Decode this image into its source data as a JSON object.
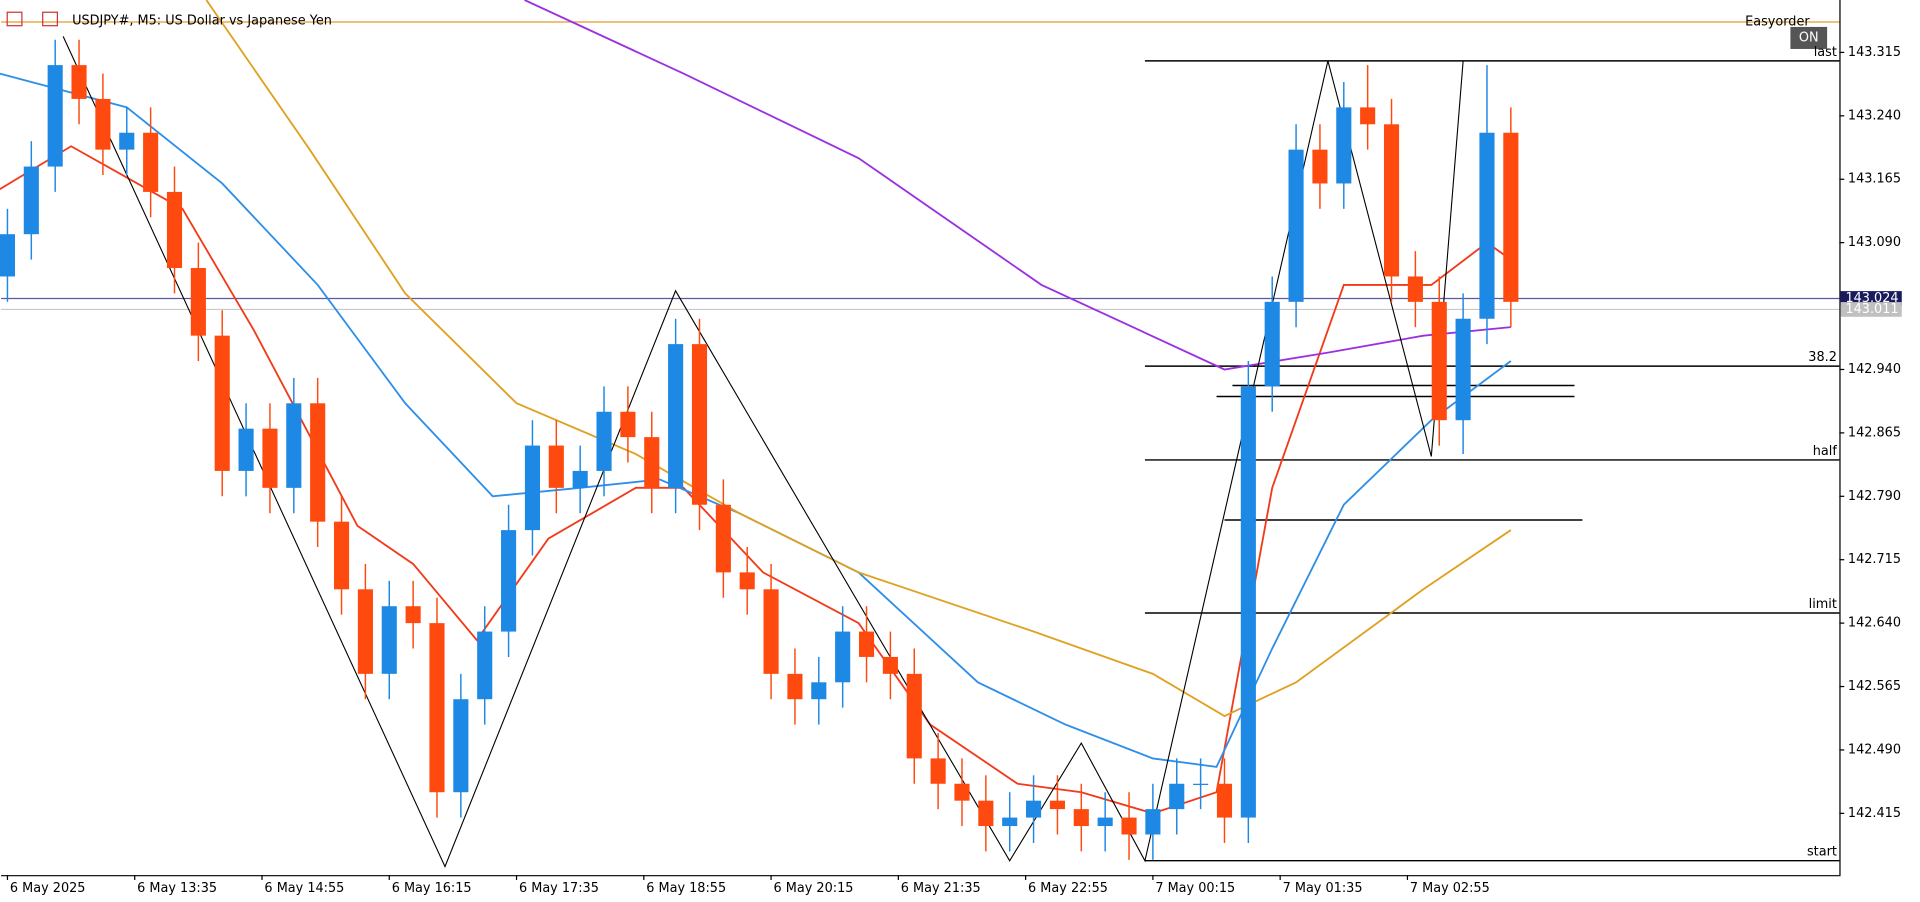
{
  "chart_data": {
    "type": "candlestick",
    "title": "USDJPY#, M5:  US Dollar vs Japanese Yen",
    "panel": "Easyorder",
    "button": "ON",
    "xlim": [
      -0.8,
      230.3
    ],
    "ylim": [
      142.342,
      143.377
    ],
    "yticks": [
      143.315,
      {
        "value": 143.24,
        "label": "143.240"
      },
      143.165,
      {
        "value": 143.09,
        "label": "143.090"
      },
      {
        "value": 142.94,
        "label": "142.940"
      },
      142.865,
      {
        "value": 142.79,
        "label": "142.790"
      },
      142.715,
      {
        "value": 142.64,
        "label": "142.640"
      },
      142.565,
      {
        "value": 142.49,
        "label": "142.490"
      },
      142.415
    ],
    "xticks": [
      {
        "value": 0,
        "label": "6 May 2025"
      },
      {
        "value": 16,
        "label": "6 May 13:35"
      },
      {
        "value": 32,
        "label": "6 May 14:55"
      },
      {
        "value": 48,
        "label": "6 May 16:15"
      },
      {
        "value": 64,
        "label": "6 May 17:35"
      },
      {
        "value": 80,
        "label": "6 May 18:55"
      },
      {
        "value": 96,
        "label": "6 May 20:15"
      },
      {
        "value": 112,
        "label": "6 May 21:35"
      },
      {
        "value": 128,
        "label": "6 May 22:55"
      },
      {
        "value": 144,
        "label": "7 May 00:15"
      },
      {
        "value": 160,
        "label": "7 May 01:35"
      },
      {
        "value": 176,
        "label": "7 May 02:55"
      }
    ],
    "up_color": "#1e88e5",
    "down_color": "#ff4a0f",
    "x": [
      0,
      3,
      6,
      9,
      12,
      15,
      18,
      21,
      24,
      27,
      30,
      33,
      36,
      39,
      42,
      45,
      48,
      51,
      54,
      57,
      60,
      63,
      66,
      69,
      72,
      75,
      78,
      81,
      84,
      87,
      90,
      93,
      96,
      99,
      102,
      105,
      108,
      111,
      114,
      117,
      120,
      123,
      126,
      129,
      132,
      135,
      138,
      141,
      144,
      147,
      150,
      153,
      156,
      159,
      162,
      165,
      168,
      171,
      174,
      177,
      180,
      183,
      186,
      189
    ],
    "open": [
      143.05,
      143.1,
      143.18,
      143.3,
      143.26,
      143.2,
      143.22,
      143.15,
      143.06,
      142.98,
      142.82,
      142.87,
      142.8,
      142.9,
      142.76,
      142.68,
      142.58,
      142.66,
      142.64,
      142.44,
      142.55,
      142.63,
      142.75,
      142.85,
      142.8,
      142.82,
      142.89,
      142.86,
      142.8,
      142.97,
      142.78,
      142.7,
      142.68,
      142.58,
      142.55,
      142.57,
      142.63,
      142.6,
      142.58,
      142.48,
      142.45,
      142.43,
      142.4,
      142.41,
      142.43,
      142.42,
      142.4,
      142.41,
      142.39,
      142.42,
      142.45,
      142.45,
      142.41,
      142.92,
      143.02,
      143.2,
      143.16,
      143.25,
      143.23,
      143.05,
      143.02,
      142.88,
      143.0,
      143.22
    ],
    "high": [
      143.13,
      143.21,
      143.33,
      143.33,
      143.29,
      143.25,
      143.25,
      143.18,
      143.09,
      143.01,
      142.9,
      142.9,
      142.93,
      142.93,
      142.79,
      142.71,
      142.69,
      142.69,
      142.67,
      142.58,
      142.66,
      142.78,
      142.88,
      142.88,
      142.85,
      142.92,
      142.92,
      142.89,
      143.0,
      143.0,
      142.81,
      142.73,
      142.71,
      142.61,
      142.6,
      142.66,
      142.66,
      142.63,
      142.61,
      142.51,
      142.48,
      142.46,
      142.44,
      142.46,
      142.46,
      142.45,
      142.44,
      142.44,
      142.45,
      142.48,
      142.48,
      142.48,
      142.95,
      143.05,
      143.23,
      143.23,
      143.28,
      143.3,
      143.26,
      143.08,
      143.05,
      143.03,
      143.3,
      143.25
    ],
    "low": [
      143.02,
      143.07,
      143.15,
      143.23,
      143.17,
      143.17,
      143.12,
      143.03,
      142.95,
      142.79,
      142.79,
      142.77,
      142.77,
      142.73,
      142.65,
      142.55,
      142.55,
      142.61,
      142.41,
      142.41,
      142.52,
      142.6,
      142.72,
      142.77,
      142.77,
      142.79,
      142.83,
      142.77,
      142.77,
      142.75,
      142.67,
      142.65,
      142.55,
      142.52,
      142.52,
      142.54,
      142.57,
      142.55,
      142.45,
      142.42,
      142.4,
      142.37,
      142.37,
      142.38,
      142.39,
      142.37,
      142.37,
      142.36,
      142.36,
      142.39,
      142.42,
      142.38,
      142.38,
      142.89,
      142.99,
      143.13,
      143.13,
      143.2,
      143.02,
      142.99,
      142.85,
      142.84,
      142.97,
      142.99
    ],
    "close": [
      143.1,
      143.18,
      143.3,
      143.26,
      143.2,
      143.22,
      143.15,
      143.06,
      142.98,
      142.82,
      142.87,
      142.8,
      142.9,
      142.76,
      142.68,
      142.58,
      142.66,
      142.64,
      142.44,
      142.55,
      142.63,
      142.75,
      142.85,
      142.8,
      142.82,
      142.89,
      142.86,
      142.8,
      142.97,
      142.78,
      142.7,
      142.68,
      142.58,
      142.55,
      142.57,
      142.63,
      142.6,
      142.58,
      142.48,
      142.45,
      142.43,
      142.4,
      142.41,
      142.43,
      142.42,
      142.4,
      142.41,
      142.39,
      142.42,
      142.45,
      142.45,
      142.41,
      142.92,
      143.02,
      143.2,
      143.16,
      143.25,
      143.23,
      143.05,
      143.02,
      142.88,
      143.0,
      143.22,
      143.02
    ],
    "moving_averages": [
      {
        "color": "#f23a1a",
        "x": [
          -1,
          8,
          22,
          31,
          44,
          51,
          59,
          68,
          79,
          85,
          95,
          107,
          116,
          127,
          135,
          144,
          152,
          159,
          168,
          179,
          186,
          189
        ],
        "values": [
          143.153,
          143.204,
          143.13,
          142.986,
          142.755,
          142.71,
          142.62,
          142.74,
          142.8,
          142.8,
          142.7,
          142.64,
          142.52,
          142.45,
          142.44,
          142.415,
          142.44,
          142.8,
          143.04,
          143.04,
          143.09,
          143.07
        ]
      },
      {
        "color": "#2e8fe8",
        "x": [
          -1,
          15,
          27,
          39,
          50,
          61,
          72,
          82,
          92,
          107,
          122,
          133,
          144,
          152,
          159,
          168,
          179,
          189
        ],
        "values": [
          143.29,
          143.25,
          143.16,
          143.04,
          142.9,
          142.79,
          142.8,
          142.81,
          142.77,
          142.7,
          142.57,
          142.52,
          142.48,
          142.47,
          142.61,
          142.78,
          142.88,
          142.95
        ]
      },
      {
        "color": "#e0a020",
        "x": [
          25,
          38,
          50,
          64,
          79,
          92,
          107,
          129,
          144,
          153,
          162,
          178,
          189
        ],
        "values": [
          143.377,
          143.2,
          143.03,
          142.9,
          142.84,
          142.77,
          142.7,
          142.63,
          142.58,
          142.53,
          142.57,
          142.68,
          142.75
        ]
      },
      {
        "color": "#9b30e0",
        "x": [
          65,
          85,
          107,
          130,
          153,
          166,
          178,
          189
        ],
        "values": [
          143.377,
          143.29,
          143.19,
          143.04,
          142.94,
          142.96,
          142.98,
          142.99
        ]
      }
    ],
    "zigzag": {
      "color": "#000000",
      "x": [
        7,
        55,
        84,
        126,
        135,
        143,
        166,
        179,
        183
      ],
      "values": [
        143.334,
        142.352,
        143.033,
        142.359,
        142.498,
        142.359,
        143.305,
        142.837,
        143.305
      ]
    },
    "fib_from": 143,
    "fib_levels": [
      {
        "label": "last",
        "value": 143.305
      },
      {
        "label": "38.2",
        "value": 142.944
      },
      {
        "label": "half",
        "value": 142.833
      },
      {
        "label": "limit",
        "value": 142.652
      },
      {
        "label": "start",
        "value": 142.359
      }
    ],
    "lines": [
      {
        "x": [
          154,
          197
        ],
        "value": 142.921
      },
      {
        "x": [
          152,
          197
        ],
        "value": 142.908
      },
      {
        "x": [
          153,
          198
        ],
        "value": 142.762
      }
    ],
    "alert_level": 143.351,
    "ask": 143.024,
    "bid": 143.011
  }
}
